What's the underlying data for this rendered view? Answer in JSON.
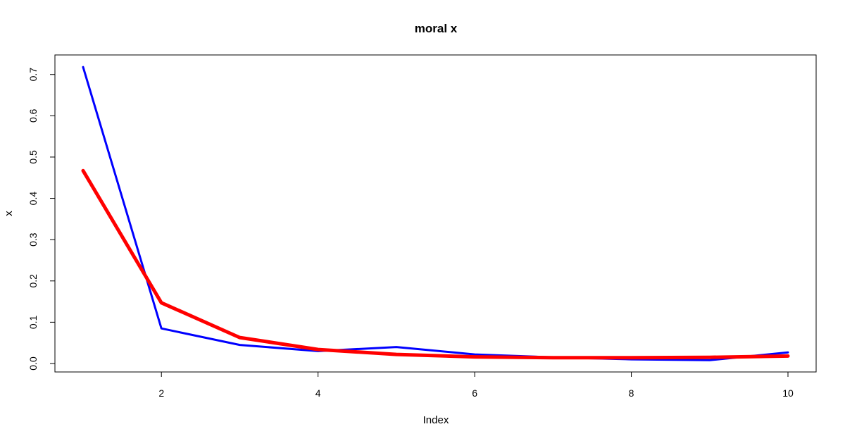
{
  "chart_data": {
    "type": "line",
    "title": "moral x",
    "xlabel": "Index",
    "ylabel": "x",
    "x": [
      1,
      2,
      3,
      4,
      5,
      6,
      7,
      8,
      9,
      10
    ],
    "xlim": [
      1,
      10
    ],
    "ylim": [
      0,
      0.72
    ],
    "xticks": [
      2,
      4,
      6,
      8,
      10
    ],
    "xtick_labels": [
      "2",
      "4",
      "6",
      "8",
      "10"
    ],
    "yticks": [
      0.0,
      0.1,
      0.2,
      0.3,
      0.4,
      0.5,
      0.6,
      0.7
    ],
    "ytick_labels": [
      "0.0",
      "0.1",
      "0.2",
      "0.3",
      "0.4",
      "0.5",
      "0.6",
      "0.7"
    ],
    "grid": false,
    "legend": "none",
    "series": [
      {
        "color": "#0000ff",
        "values": [
          0.718,
          0.085,
          0.045,
          0.03,
          0.04,
          0.022,
          0.015,
          0.01,
          0.008,
          0.027
        ]
      },
      {
        "color": "#ff0000",
        "values": [
          0.467,
          0.147,
          0.063,
          0.034,
          0.022,
          0.016,
          0.014,
          0.014,
          0.015,
          0.018
        ]
      }
    ]
  }
}
